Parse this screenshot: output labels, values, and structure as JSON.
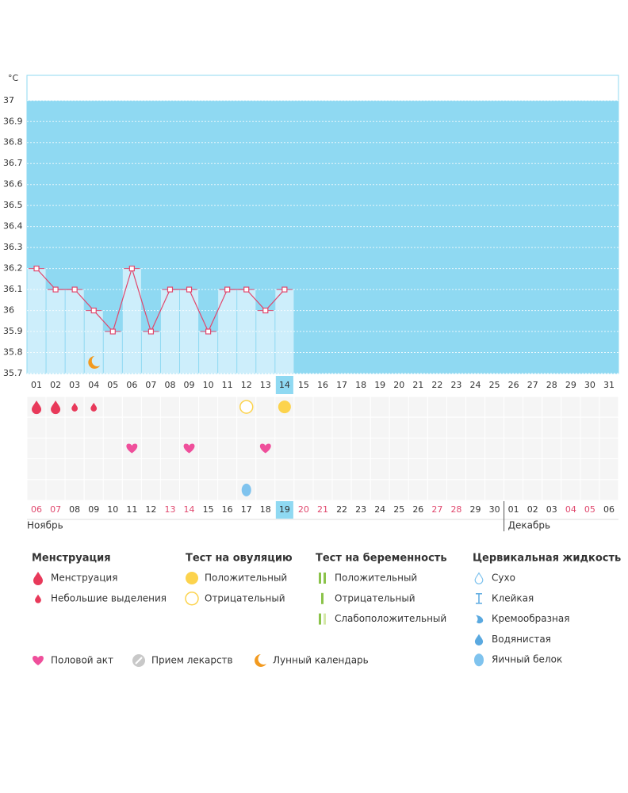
{
  "chart_data": {
    "type": "line",
    "y_unit": "°C",
    "categories": [
      "01",
      "02",
      "03",
      "04",
      "05",
      "06",
      "07",
      "08",
      "09",
      "10",
      "11",
      "12",
      "13",
      "14",
      "15",
      "16",
      "17",
      "18",
      "19",
      "20",
      "21",
      "22",
      "23",
      "24",
      "25",
      "26",
      "27",
      "28",
      "29",
      "30",
      "31"
    ],
    "values": [
      36.2,
      36.1,
      36.1,
      36.0,
      35.9,
      36.2,
      35.9,
      36.1,
      36.1,
      35.9,
      36.1,
      36.1,
      36.0,
      36.1,
      null,
      null,
      null,
      null,
      null,
      null,
      null,
      null,
      null,
      null,
      null,
      null,
      null,
      null,
      null,
      null,
      null
    ],
    "color": "#e0476d",
    "bar_color": "#cdeefb",
    "background": "#8fd9f2",
    "ylim": [
      35.7,
      37.12
    ],
    "yticks": [
      35.7,
      35.8,
      35.9,
      36,
      36.1,
      36.2,
      36.3,
      36.4,
      36.5,
      36.6,
      36.7,
      36.8,
      36.9,
      37
    ],
    "grid": true,
    "today": "14",
    "plot_icons": [
      null,
      null,
      null,
      "moon",
      null,
      null,
      null,
      null,
      null,
      null,
      null,
      null,
      null,
      null,
      null,
      null,
      null,
      null,
      null,
      null,
      null,
      null,
      null,
      null,
      null,
      null,
      null,
      null,
      null,
      null,
      null
    ]
  },
  "event_rows": [
    [
      "drop-big",
      "drop-big",
      "drop-small",
      "drop-small",
      null,
      null,
      null,
      null,
      null,
      null,
      null,
      "circle-open",
      null,
      "circle-filled",
      null,
      null,
      null,
      null,
      null,
      null,
      null,
      null,
      null,
      null,
      null,
      null,
      null,
      null,
      null,
      null,
      null
    ],
    [
      null,
      null,
      null,
      null,
      null,
      null,
      null,
      null,
      null,
      null,
      null,
      null,
      null,
      null,
      null,
      null,
      null,
      null,
      null,
      null,
      null,
      null,
      null,
      null,
      null,
      null,
      null,
      null,
      null,
      null,
      null
    ],
    [
      null,
      null,
      null,
      null,
      null,
      "heart",
      null,
      null,
      "heart",
      null,
      null,
      null,
      "heart",
      null,
      null,
      null,
      null,
      null,
      null,
      null,
      null,
      null,
      null,
      null,
      null,
      null,
      null,
      null,
      null,
      null,
      null
    ],
    [
      null,
      null,
      null,
      null,
      null,
      null,
      null,
      null,
      null,
      null,
      null,
      null,
      null,
      null,
      null,
      null,
      null,
      null,
      null,
      null,
      null,
      null,
      null,
      null,
      null,
      null,
      null,
      null,
      null,
      null,
      null
    ],
    [
      null,
      null,
      null,
      null,
      null,
      null,
      null,
      null,
      null,
      null,
      null,
      "egg",
      null,
      null,
      null,
      null,
      null,
      null,
      null,
      null,
      null,
      null,
      null,
      null,
      null,
      null,
      null,
      null,
      null,
      null,
      null
    ]
  ],
  "calendar": {
    "dates": [
      "06",
      "07",
      "08",
      "09",
      "10",
      "11",
      "12",
      "13",
      "14",
      "15",
      "16",
      "17",
      "18",
      "19",
      "20",
      "21",
      "22",
      "23",
      "24",
      "25",
      "26",
      "27",
      "28",
      "29",
      "30",
      "01",
      "02",
      "03",
      "04",
      "05",
      "06"
    ],
    "weekend": [
      true,
      true,
      false,
      false,
      false,
      false,
      false,
      true,
      true,
      false,
      false,
      false,
      false,
      false,
      true,
      true,
      false,
      false,
      false,
      false,
      false,
      true,
      true,
      false,
      false,
      false,
      false,
      false,
      true,
      true,
      false
    ],
    "weekend_color": "#e0476d",
    "today": "19",
    "months": [
      "Ноябрь",
      "Декабрь"
    ]
  },
  "legend": {
    "groups": [
      {
        "title": "Менструация",
        "items": [
          {
            "label": "Менструация",
            "icon": "drop-big"
          },
          {
            "label": "Небольшие выделения",
            "icon": "drop-small"
          }
        ]
      },
      {
        "title": "Тест на овуляцию",
        "items": [
          {
            "label": "Положительный",
            "icon": "circle-filled"
          },
          {
            "label": "Отрицательный",
            "icon": "circle-open"
          }
        ]
      },
      {
        "title": "Тест на беременность",
        "items": [
          {
            "label": "Положительный",
            "icon": "bars-2"
          },
          {
            "label": "Отрицательный",
            "icon": "bar-1"
          },
          {
            "label": "Слабоположительный",
            "icon": "bars-2-light"
          }
        ]
      },
      {
        "title": "Цервикальная жидкость",
        "items": [
          {
            "label": "Сухо",
            "icon": "dry"
          },
          {
            "label": "Клейкая",
            "icon": "sticky"
          },
          {
            "label": "Кремообразная",
            "icon": "creamy"
          },
          {
            "label": "Водянистая",
            "icon": "watery"
          },
          {
            "label": "Яичный белок",
            "icon": "egg"
          }
        ]
      }
    ],
    "extra": [
      {
        "label": "Половой акт",
        "icon": "heart"
      },
      {
        "label": "Прием лекарств",
        "icon": "pill"
      },
      {
        "label": "Лунный календарь",
        "icon": "moon"
      }
    ]
  }
}
